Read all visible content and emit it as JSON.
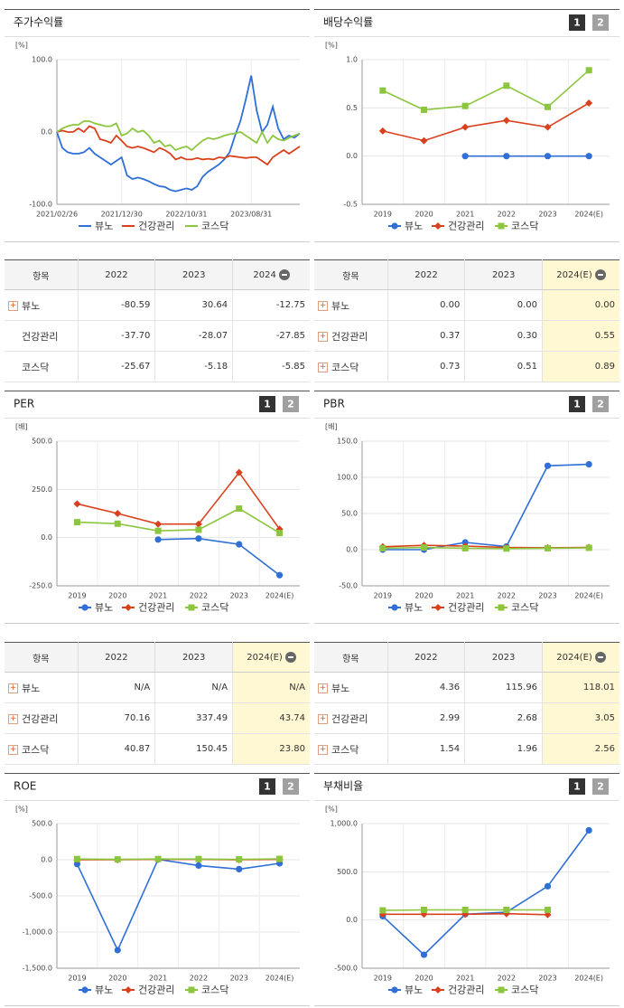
{
  "chart_data": [
    {
      "type": "line",
      "title": "주가수익률",
      "unit": "[%]",
      "markers": false,
      "grid": true,
      "categories": [
        "2021/02/26",
        null,
        null,
        null,
        null,
        null,
        null,
        null,
        null,
        null,
        null,
        null,
        "2021/12/30",
        null,
        null,
        null,
        null,
        null,
        null,
        null,
        null,
        null,
        null,
        null,
        "2022/10/31",
        null,
        null,
        null,
        null,
        null,
        null,
        null,
        null,
        null,
        null,
        null,
        "2023/08/31",
        null,
        null,
        null,
        null,
        null,
        null,
        null,
        null,
        null
      ],
      "series": [
        {
          "name": "뷰노",
          "color": "#2f6fd6",
          "marker": "circle",
          "values": [
            0,
            -22,
            -28,
            -30,
            -30,
            -28,
            -22,
            -30,
            -35,
            -40,
            -45,
            -40,
            -35,
            -60,
            -65,
            -63,
            -65,
            -68,
            -72,
            -75,
            -76,
            -80,
            -82,
            -80,
            -78,
            -80,
            -75,
            -62,
            -55,
            -50,
            -45,
            -38,
            -28,
            -5,
            15,
            45,
            78,
            30,
            0,
            10,
            35,
            5,
            -10,
            -5,
            -8,
            -2
          ]
        },
        {
          "name": "건강관리",
          "color": "#d9411e",
          "marker": "diamond",
          "values": [
            0,
            2,
            0,
            0,
            5,
            0,
            8,
            5,
            -10,
            -12,
            -15,
            -5,
            -12,
            -20,
            -22,
            -20,
            -22,
            -25,
            -28,
            -22,
            -25,
            -30,
            -38,
            -35,
            -38,
            -38,
            -36,
            -38,
            -37,
            -38,
            -35,
            -36,
            -33,
            -34,
            -35,
            -36,
            -35,
            -35,
            -40,
            -45,
            -35,
            -30,
            -25,
            -30,
            -25,
            -20
          ]
        },
        {
          "name": "코스닥",
          "color": "#8cc63f",
          "marker": "square",
          "values": [
            0,
            5,
            8,
            10,
            10,
            15,
            15,
            12,
            10,
            8,
            8,
            12,
            -5,
            -2,
            5,
            0,
            2,
            -5,
            -15,
            -12,
            -20,
            -18,
            -25,
            -22,
            -20,
            -25,
            -18,
            -12,
            -8,
            -10,
            -8,
            -5,
            -3,
            -2,
            0,
            -5,
            -10,
            -15,
            0,
            -15,
            -5,
            -10,
            -12,
            -8,
            -5,
            -2
          ]
        }
      ],
      "ylim": [
        -100,
        100
      ],
      "yticks": [
        {
          "value": 100,
          "label": "100.0"
        },
        {
          "value": 0,
          "label": "0.0"
        },
        {
          "value": -100,
          "label": "-100.0"
        }
      ]
    },
    {
      "type": "line",
      "title": "배당수익률",
      "unit": "[%]",
      "tabs": [
        "1",
        "2"
      ],
      "markers": true,
      "grid": true,
      "categories": [
        "2019",
        "2020",
        "2021",
        "2022",
        "2023",
        "2024(E)"
      ],
      "series": [
        {
          "name": "뷰노",
          "color": "#2f6fd6",
          "marker": "circle",
          "values": [
            null,
            null,
            0,
            0,
            0,
            0
          ]
        },
        {
          "name": "건강관리",
          "color": "#d9411e",
          "marker": "diamond",
          "values": [
            0.26,
            0.16,
            0.3,
            0.37,
            0.3,
            0.55
          ]
        },
        {
          "name": "코스닥",
          "color": "#8cc63f",
          "marker": "square",
          "values": [
            0.68,
            0.48,
            0.52,
            0.73,
            0.51,
            0.89
          ]
        }
      ],
      "ylim": [
        -0.5,
        1
      ],
      "yticks": [
        {
          "value": 1,
          "label": "1.0"
        },
        {
          "value": 0.5,
          "label": "0.5"
        },
        {
          "value": 0,
          "label": "0.0"
        },
        {
          "value": -0.5,
          "label": "-0.5"
        }
      ]
    },
    {
      "type": "line",
      "title": "PER",
      "unit": "[배]",
      "tabs": [
        "1",
        "2"
      ],
      "markers": true,
      "grid": true,
      "categories": [
        "2019",
        "2020",
        "2021",
        "2022",
        "2023",
        "2024(E)"
      ],
      "series": [
        {
          "name": "뷰노",
          "color": "#2f6fd6",
          "marker": "circle",
          "values": [
            null,
            null,
            -10,
            -5,
            -35,
            -195
          ]
        },
        {
          "name": "건강관리",
          "color": "#d9411e",
          "marker": "diamond",
          "values": [
            175,
            125,
            70,
            70.16,
            337.49,
            43.74
          ]
        },
        {
          "name": "코스닥",
          "color": "#8cc63f",
          "marker": "square",
          "values": [
            80,
            72,
            35,
            40.87,
            150.45,
            23.8
          ]
        }
      ],
      "ylim": [
        -250,
        500
      ],
      "yticks": [
        {
          "value": 500,
          "label": "500.0"
        },
        {
          "value": 250,
          "label": "250.0"
        },
        {
          "value": 0,
          "label": "0.0"
        },
        {
          "value": -250,
          "label": "-250.0"
        }
      ]
    },
    {
      "type": "line",
      "title": "PBR",
      "unit": "[배]",
      "tabs": [
        "1",
        "2"
      ],
      "markers": true,
      "grid": true,
      "categories": [
        "2019",
        "2020",
        "2021",
        "2022",
        "2023",
        "2024(E)"
      ],
      "series": [
        {
          "name": "뷰노",
          "color": "#2f6fd6",
          "marker": "circle",
          "values": [
            0,
            0,
            10,
            4.36,
            115.96,
            118.01
          ]
        },
        {
          "name": "건강관리",
          "color": "#d9411e",
          "marker": "diamond",
          "values": [
            4,
            6,
            5,
            2.99,
            2.68,
            3.05
          ]
        },
        {
          "name": "코스닥",
          "color": "#8cc63f",
          "marker": "square",
          "values": [
            2,
            3,
            2,
            1.54,
            1.96,
            2.56
          ]
        }
      ],
      "ylim": [
        -50,
        150
      ],
      "yticks": [
        {
          "value": 150,
          "label": "150.0"
        },
        {
          "value": 100,
          "label": "100.0"
        },
        {
          "value": 50,
          "label": "50.0"
        },
        {
          "value": 0,
          "label": "0.0"
        },
        {
          "value": -50,
          "label": "-50.0"
        }
      ]
    },
    {
      "type": "line",
      "title": "ROE",
      "unit": "[%]",
      "tabs": [
        "1",
        "2"
      ],
      "markers": true,
      "grid": true,
      "categories": [
        "2019",
        "2020",
        "2021",
        "2022",
        "2023",
        "2024(E)"
      ],
      "series": [
        {
          "name": "뷰노",
          "color": "#2f6fd6",
          "marker": "circle",
          "values": [
            -60,
            -1250,
            5,
            -80,
            -130,
            -50
          ]
        },
        {
          "name": "건강관리",
          "color": "#d9411e",
          "marker": "diamond",
          "values": [
            0,
            0,
            5,
            5,
            0,
            5
          ]
        },
        {
          "name": "코스닥",
          "color": "#8cc63f",
          "marker": "square",
          "values": [
            10,
            5,
            10,
            10,
            5,
            12
          ]
        }
      ],
      "ylim": [
        -1500,
        500
      ],
      "yticks": [
        {
          "value": 500,
          "label": "500.0"
        },
        {
          "value": 0,
          "label": "0.0"
        },
        {
          "value": -500,
          "label": "-500.0"
        },
        {
          "value": -1000,
          "label": "-1,000.0"
        },
        {
          "value": -1500,
          "label": "-1,500.0"
        }
      ]
    },
    {
      "type": "line",
      "title": "부채비율",
      "unit": "[%]",
      "tabs": [
        "1",
        "2"
      ],
      "markers": true,
      "grid": true,
      "categories": [
        "2019",
        "2020",
        "2021",
        "2022",
        "2023",
        "2024(E)"
      ],
      "series": [
        {
          "name": "뷰노",
          "color": "#2f6fd6",
          "marker": "circle",
          "values": [
            40,
            -360,
            60,
            80,
            350,
            930
          ]
        },
        {
          "name": "건강관리",
          "color": "#d9411e",
          "marker": "diamond",
          "values": [
            60,
            60,
            60,
            65,
            55,
            null
          ]
        },
        {
          "name": "코스닥",
          "color": "#8cc63f",
          "marker": "square",
          "values": [
            100,
            105,
            105,
            105,
            105,
            null
          ]
        }
      ],
      "ylim": [
        -500,
        1000
      ],
      "yticks": [
        {
          "value": 1000,
          "label": "1,000.0"
        },
        {
          "value": 500,
          "label": "500.0"
        },
        {
          "value": 0,
          "label": "0.0"
        },
        {
          "value": -500,
          "label": "-500.0"
        }
      ]
    }
  ],
  "tables": [
    {
      "header": [
        "항목",
        "2022",
        "2023",
        "2024"
      ],
      "highlight_last": false,
      "expandable": [
        true,
        false,
        false
      ],
      "rows": [
        [
          "뷰노",
          "-80.59",
          "30.64",
          "-12.75"
        ],
        [
          "건강관리",
          "-37.70",
          "-28.07",
          "-27.85"
        ],
        [
          "코스닥",
          "-25.67",
          "-5.18",
          "-5.85"
        ]
      ]
    },
    {
      "header": [
        "항목",
        "2022",
        "2023",
        "2024(E)"
      ],
      "highlight_last": true,
      "expandable": [
        true,
        true,
        true
      ],
      "rows": [
        [
          "뷰노",
          "0.00",
          "0.00",
          "0.00"
        ],
        [
          "건강관리",
          "0.37",
          "0.30",
          "0.55"
        ],
        [
          "코스닥",
          "0.73",
          "0.51",
          "0.89"
        ]
      ]
    },
    {
      "header": [
        "항목",
        "2022",
        "2023",
        "2024(E)"
      ],
      "highlight_last": true,
      "expandable": [
        true,
        true,
        true
      ],
      "rows": [
        [
          "뷰노",
          "N/A",
          "N/A",
          "N/A"
        ],
        [
          "건강관리",
          "70.16",
          "337.49",
          "43.74"
        ],
        [
          "코스닥",
          "40.87",
          "150.45",
          "23.80"
        ]
      ]
    },
    {
      "header": [
        "항목",
        "2022",
        "2023",
        "2024(E)"
      ],
      "highlight_last": true,
      "expandable": [
        true,
        true,
        true
      ],
      "rows": [
        [
          "뷰노",
          "4.36",
          "115.96",
          "118.01"
        ],
        [
          "건강관리",
          "2.99",
          "2.68",
          "3.05"
        ],
        [
          "코스닥",
          "1.54",
          "1.96",
          "2.56"
        ]
      ]
    }
  ]
}
